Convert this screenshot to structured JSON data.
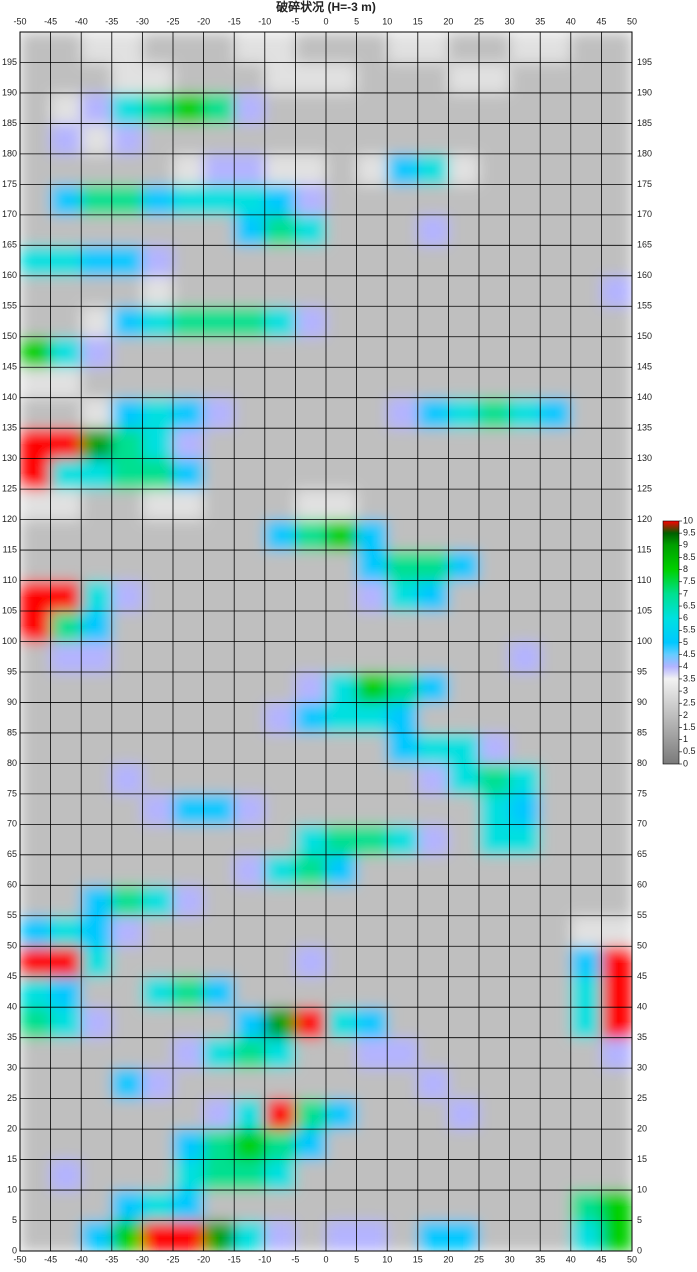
{
  "chart_data": {
    "type": "heatmap",
    "title": "破碎状况 (H=-3 m)",
    "xbins": [
      -50,
      -45,
      -40,
      -35,
      -30,
      -25,
      -20,
      -15,
      -10,
      -5,
      0,
      5,
      10,
      15,
      20,
      25,
      30,
      35,
      40,
      45,
      50
    ],
    "ybins": [
      0,
      5,
      10,
      15,
      20,
      25,
      30,
      35,
      40,
      45,
      50,
      55,
      60,
      65,
      70,
      75,
      80,
      85,
      90,
      95,
      100,
      105,
      110,
      115,
      120,
      125,
      130,
      135,
      140,
      145,
      150,
      155,
      160,
      165,
      170,
      175,
      180,
      185,
      190,
      195,
      200
    ],
    "values": [
      [
        2,
        2,
        5,
        8,
        10,
        10,
        9,
        6,
        4,
        2,
        4,
        4,
        2,
        5,
        5,
        2,
        2,
        2,
        6,
        8
      ],
      [
        2,
        2,
        2,
        5,
        6,
        5,
        2,
        2,
        2,
        2,
        2,
        2,
        2,
        2,
        2,
        2,
        2,
        2,
        7,
        8
      ],
      [
        2,
        4,
        2,
        2,
        2,
        6,
        7,
        7,
        6,
        2,
        2,
        2,
        2,
        2,
        2,
        2,
        2,
        2,
        2,
        2
      ],
      [
        2,
        2,
        2,
        2,
        2,
        5,
        7,
        8,
        7,
        5,
        2,
        2,
        2,
        2,
        2,
        2,
        2,
        2,
        2,
        2
      ],
      [
        2,
        2,
        2,
        2,
        2,
        2,
        4,
        6,
        10,
        7,
        5,
        2,
        2,
        2,
        4,
        2,
        2,
        2,
        2,
        2
      ],
      [
        2,
        2,
        2,
        5,
        4,
        2,
        2,
        2,
        2,
        2,
        2,
        2,
        2,
        4,
        2,
        2,
        2,
        2,
        2,
        2
      ],
      [
        2,
        2,
        2,
        2,
        2,
        4,
        6,
        7,
        6,
        2,
        2,
        4,
        4,
        2,
        2,
        2,
        2,
        2,
        2,
        4
      ],
      [
        7,
        6,
        4,
        2,
        2,
        2,
        2,
        5,
        9,
        10,
        6,
        5,
        2,
        2,
        2,
        2,
        2,
        2,
        6,
        10
      ],
      [
        6,
        5,
        2,
        2,
        6,
        7,
        5,
        2,
        2,
        2,
        2,
        2,
        2,
        2,
        2,
        2,
        2,
        2,
        6,
        10
      ],
      [
        10,
        10,
        6,
        2,
        2,
        2,
        2,
        2,
        2,
        4,
        2,
        2,
        2,
        2,
        2,
        2,
        2,
        2,
        5,
        10
      ],
      [
        5,
        6,
        5,
        4,
        2,
        2,
        2,
        2,
        2,
        2,
        2,
        2,
        2,
        2,
        2,
        2,
        2,
        2,
        3,
        3
      ],
      [
        2,
        2,
        5,
        7,
        6,
        4,
        2,
        2,
        2,
        2,
        2,
        2,
        2,
        2,
        2,
        2,
        2,
        2,
        2,
        2
      ],
      [
        2,
        2,
        2,
        2,
        2,
        2,
        2,
        4,
        6,
        7,
        5,
        2,
        2,
        2,
        2,
        2,
        2,
        2,
        2,
        2
      ],
      [
        2,
        2,
        2,
        2,
        2,
        2,
        2,
        2,
        2,
        6,
        7,
        7,
        6,
        4,
        2,
        6,
        6,
        2,
        2,
        2
      ],
      [
        2,
        2,
        2,
        2,
        4,
        5,
        5,
        4,
        2,
        2,
        2,
        2,
        2,
        2,
        2,
        6,
        5,
        2,
        2,
        2
      ],
      [
        2,
        2,
        2,
        4,
        2,
        2,
        2,
        2,
        2,
        2,
        2,
        2,
        2,
        4,
        6,
        7,
        6,
        2,
        2,
        2
      ],
      [
        2,
        2,
        2,
        2,
        2,
        2,
        2,
        2,
        2,
        2,
        2,
        2,
        5,
        6,
        6,
        4,
        2,
        2,
        2,
        2
      ],
      [
        2,
        2,
        2,
        2,
        2,
        2,
        2,
        2,
        4,
        5,
        6,
        6,
        5,
        2,
        2,
        2,
        2,
        2,
        2,
        2
      ],
      [
        2,
        2,
        2,
        2,
        2,
        2,
        2,
        2,
        2,
        4,
        6,
        8,
        7,
        5,
        2,
        2,
        2,
        2,
        2,
        2
      ],
      [
        2,
        4,
        4,
        2,
        2,
        2,
        2,
        2,
        2,
        2,
        2,
        2,
        2,
        2,
        2,
        2,
        4,
        2,
        2,
        2
      ],
      [
        10,
        7,
        5,
        2,
        2,
        2,
        2,
        2,
        2,
        2,
        2,
        2,
        2,
        2,
        2,
        2,
        2,
        2,
        2,
        2
      ],
      [
        10,
        10,
        6,
        4,
        2,
        2,
        2,
        2,
        2,
        2,
        2,
        4,
        6,
        5,
        2,
        2,
        2,
        2,
        2,
        2
      ],
      [
        2,
        2,
        2,
        2,
        2,
        2,
        2,
        2,
        2,
        2,
        2,
        5,
        7,
        7,
        5,
        2,
        2,
        2,
        2,
        2
      ],
      [
        2,
        2,
        2,
        2,
        2,
        2,
        2,
        2,
        5,
        7,
        8,
        5,
        2,
        2,
        2,
        2,
        2,
        2,
        2,
        2
      ],
      [
        3,
        3,
        2,
        2,
        3,
        3,
        2,
        2,
        2,
        3,
        3,
        2,
        2,
        2,
        2,
        2,
        2,
        2,
        2,
        2
      ],
      [
        10,
        6,
        6,
        7,
        7,
        5,
        2,
        2,
        2,
        2,
        2,
        2,
        2,
        2,
        2,
        2,
        2,
        2,
        2,
        2
      ],
      [
        10,
        10,
        9,
        7,
        6,
        4,
        2,
        2,
        2,
        2,
        2,
        2,
        2,
        2,
        2,
        2,
        2,
        2,
        2,
        2
      ],
      [
        2,
        2,
        3,
        5,
        6,
        5,
        4,
        2,
        2,
        2,
        2,
        2,
        4,
        5,
        6,
        7,
        6,
        5,
        2,
        2
      ],
      [
        3,
        3,
        2,
        2,
        2,
        2,
        2,
        2,
        2,
        2,
        2,
        2,
        2,
        2,
        2,
        2,
        2,
        2,
        2,
        2
      ],
      [
        8,
        6,
        4,
        2,
        2,
        2,
        2,
        2,
        2,
        2,
        2,
        2,
        2,
        2,
        2,
        2,
        2,
        2,
        2,
        2
      ],
      [
        2,
        2,
        3,
        5,
        6,
        7,
        7,
        7,
        6,
        4,
        2,
        2,
        2,
        2,
        2,
        2,
        2,
        2,
        2,
        2
      ],
      [
        2,
        2,
        2,
        2,
        3,
        2,
        2,
        2,
        2,
        2,
        2,
        2,
        2,
        2,
        2,
        2,
        2,
        2,
        2,
        4
      ],
      [
        6,
        6,
        5,
        5,
        4,
        2,
        2,
        2,
        2,
        2,
        2,
        2,
        2,
        2,
        2,
        2,
        2,
        2,
        2,
        2
      ],
      [
        2,
        2,
        2,
        2,
        2,
        2,
        2,
        5,
        7,
        6,
        2,
        2,
        2,
        4,
        2,
        2,
        2,
        2,
        2,
        2
      ],
      [
        2,
        5,
        7,
        7,
        5,
        6,
        6,
        6,
        5,
        4,
        2,
        2,
        2,
        2,
        2,
        2,
        2,
        2,
        2,
        2
      ],
      [
        2,
        2,
        2,
        2,
        2,
        3,
        4,
        4,
        3,
        3,
        2,
        3,
        5,
        6,
        3,
        2,
        2,
        2,
        2,
        2
      ],
      [
        2,
        4,
        3,
        4,
        2,
        2,
        2,
        2,
        2,
        2,
        2,
        2,
        2,
        2,
        2,
        2,
        2,
        2,
        2,
        2
      ],
      [
        2,
        3,
        4,
        6,
        7,
        8,
        7,
        4,
        2,
        2,
        2,
        2,
        2,
        2,
        2,
        2,
        2,
        2,
        2,
        2
      ],
      [
        2,
        2,
        2,
        3,
        3,
        2,
        2,
        2,
        3,
        3,
        3,
        2,
        2,
        2,
        3,
        3,
        2,
        2,
        2,
        2
      ],
      [
        2,
        2,
        3,
        3,
        2,
        2,
        2,
        3,
        3,
        2,
        2,
        2,
        3,
        3,
        2,
        2,
        3,
        3,
        2,
        2
      ]
    ],
    "xlim": [
      -50,
      50
    ],
    "ylim": [
      0,
      200
    ],
    "xticks": [
      -50,
      -45,
      -40,
      -35,
      -30,
      -25,
      -20,
      -15,
      -10,
      -5,
      0,
      5,
      10,
      15,
      20,
      25,
      30,
      35,
      40,
      45,
      50
    ],
    "yticks": [
      0,
      5,
      10,
      15,
      20,
      25,
      30,
      35,
      40,
      45,
      50,
      55,
      60,
      65,
      70,
      75,
      80,
      85,
      90,
      95,
      100,
      105,
      110,
      115,
      120,
      125,
      130,
      135,
      140,
      145,
      150,
      155,
      160,
      165,
      170,
      175,
      180,
      185,
      190,
      195
    ],
    "grid": true,
    "colorscale": [
      [
        0,
        "#7a7a7a"
      ],
      [
        3.5,
        "#f2f2f2"
      ],
      [
        4,
        "#b4b4ff"
      ],
      [
        4.5,
        "#66ccff"
      ],
      [
        5,
        "#00c8ff"
      ],
      [
        6,
        "#00e0e0"
      ],
      [
        7,
        "#00e090"
      ],
      [
        8,
        "#00d000"
      ],
      [
        9,
        "#00a000"
      ],
      [
        9.5,
        "#006000"
      ],
      [
        10,
        "#ff0000"
      ]
    ],
    "colorbar": {
      "lim": [
        0,
        10
      ],
      "ticks": [
        0,
        0.5,
        1,
        1.5,
        2,
        2.5,
        3,
        3.5,
        4,
        4.5,
        5,
        5.5,
        6,
        6.5,
        7,
        7.5,
        8,
        8.5,
        9,
        9.5,
        10
      ]
    }
  }
}
